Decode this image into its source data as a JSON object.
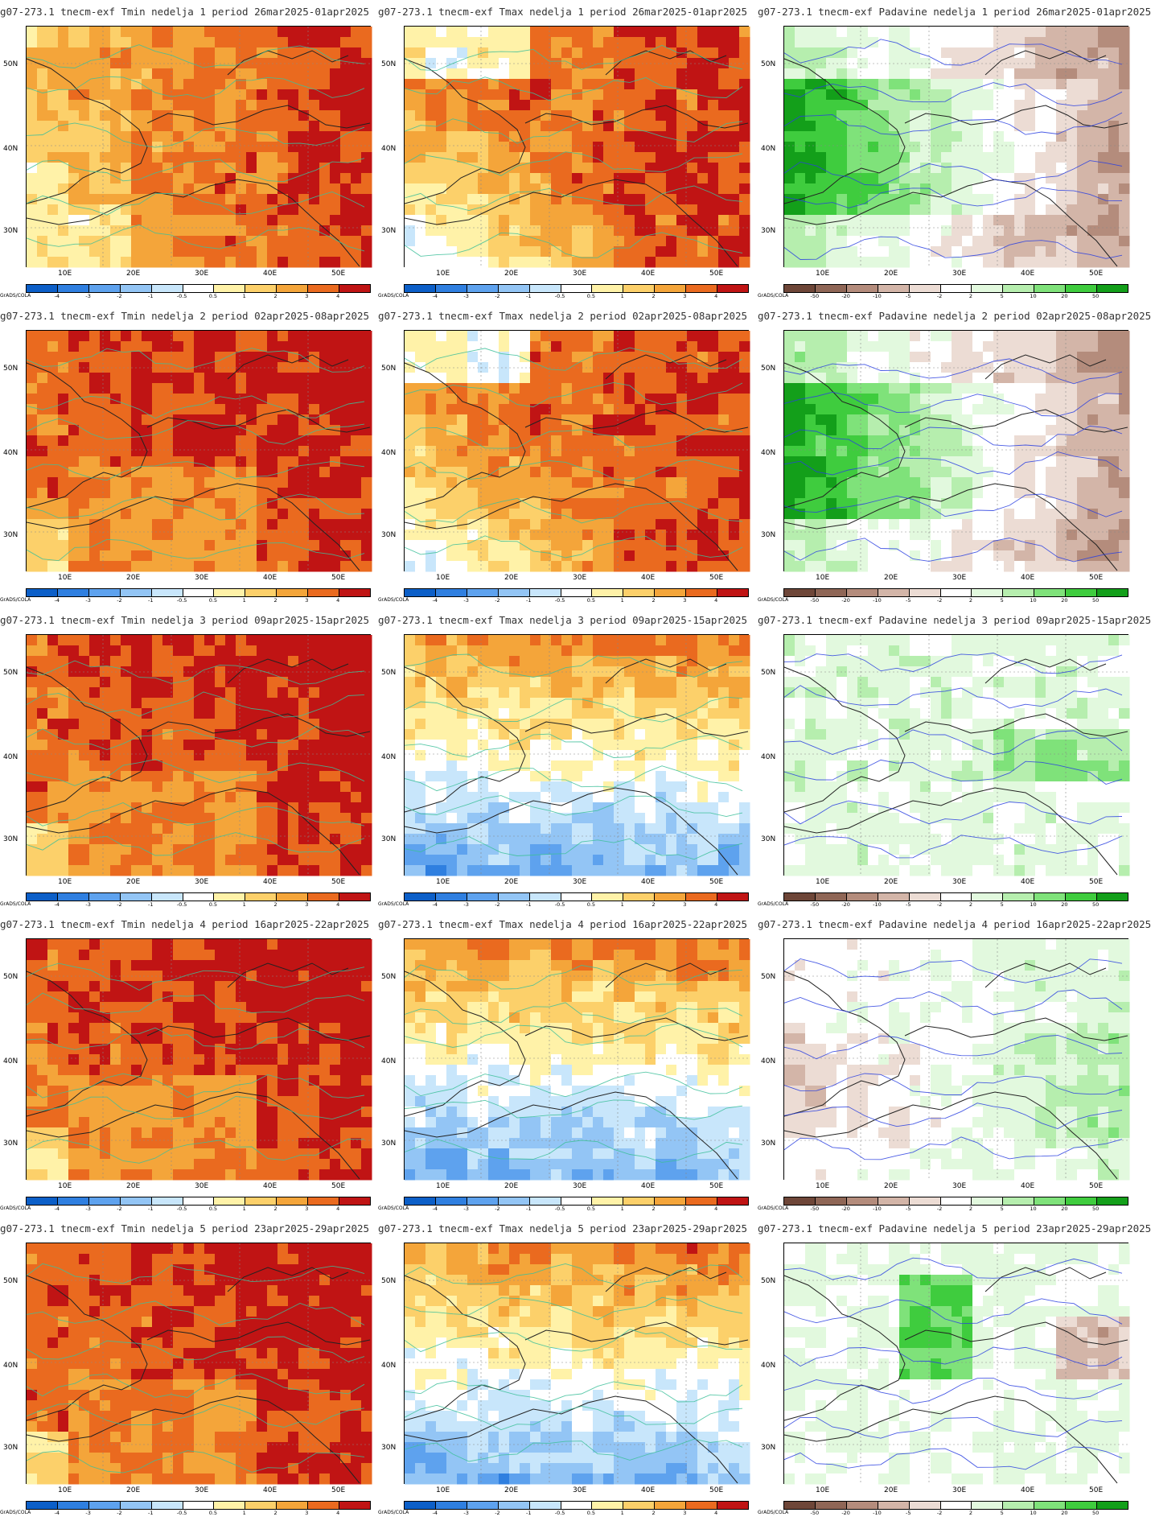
{
  "lat_labels": [
    "50N",
    "40N",
    "30N"
  ],
  "lon_labels": [
    "10E",
    "20E",
    "30E",
    "40E",
    "50E"
  ],
  "credit": "GrADS/COLA",
  "temp_scale": {
    "ticks": [
      "-4",
      "-3",
      "-2",
      "-1",
      "-0.5",
      "0.5",
      "1",
      "2",
      "3",
      "4"
    ],
    "colors": [
      "#0c5fc8",
      "#2f7fe0",
      "#5ea2ee",
      "#93c5f5",
      "#c8e6fb",
      "#ffffff",
      "#fff2a8",
      "#fcd06a",
      "#f4a53a",
      "#ea6a1f",
      "#c01414"
    ]
  },
  "precip_scale": {
    "ticks": [
      "-50",
      "-20",
      "-10",
      "-5",
      "-2",
      "2",
      "5",
      "10",
      "20",
      "50"
    ],
    "colors": [
      "#6e4638",
      "#8f6656",
      "#b48c7c",
      "#d3b5a8",
      "#ecdcd4",
      "#ffffff",
      "#e2f9de",
      "#b6eeae",
      "#7fe27a",
      "#3fcc3e",
      "#139f1a"
    ]
  },
  "panels": [
    {
      "title": "g07-273.1 tnecm-exf Tmin nedelja 1 period 26mar2025-01apr2025",
      "scale": "temp",
      "pattern": "warm"
    },
    {
      "title": "g07-273.1 tnecm-exf Tmax nedelja 1 period 26mar2025-01apr2025",
      "scale": "temp",
      "pattern": "mixed_cold_sw"
    },
    {
      "title": "g07-273.1 tnecm-exf Padavine nedelja 1 period 26mar2025-01apr2025",
      "scale": "precip",
      "pattern": "wet_west_dry_east"
    },
    {
      "title": "g07-273.1 tnecm-exf Tmin nedelja 2 period 02apr2025-08apr2025",
      "scale": "temp",
      "pattern": "very_warm"
    },
    {
      "title": "g07-273.1 tnecm-exf Tmax nedelja 2 period 02apr2025-08apr2025",
      "scale": "temp",
      "pattern": "mixed_cold_sw"
    },
    {
      "title": "g07-273.1 tnecm-exf Padavine nedelja 2 period 02apr2025-08apr2025",
      "scale": "precip",
      "pattern": "wet_west_dry_east"
    },
    {
      "title": "g07-273.1 tnecm-exf Tmin nedelja 3 period 09apr2025-15apr2025",
      "scale": "temp",
      "pattern": "very_warm"
    },
    {
      "title": "g07-273.1 tnecm-exf Tmax nedelja 3 period 09apr2025-15apr2025",
      "scale": "temp",
      "pattern": "warm_north_cold_south"
    },
    {
      "title": "g07-273.1 tnecm-exf Padavine nedelja 3 period 09apr2025-15apr2025",
      "scale": "precip",
      "pattern": "light_wet"
    },
    {
      "title": "g07-273.1 tnecm-exf Tmin nedelja 4 period 16apr2025-22apr2025",
      "scale": "temp",
      "pattern": "very_warm"
    },
    {
      "title": "g07-273.1 tnecm-exf Tmax nedelja 4 period 16apr2025-22apr2025",
      "scale": "temp",
      "pattern": "warm_north_cold_south"
    },
    {
      "title": "g07-273.1 tnecm-exf Padavine nedelja 4 period 16apr2025-22apr2025",
      "scale": "precip",
      "pattern": "wet_east_dry_west"
    },
    {
      "title": "g07-273.1 tnecm-exf Tmin nedelja 5 period 23apr2025-29apr2025",
      "scale": "temp",
      "pattern": "very_warm"
    },
    {
      "title": "g07-273.1 tnecm-exf Tmax nedelja 5 period 23apr2025-29apr2025",
      "scale": "temp",
      "pattern": "warm_north_cold_south"
    },
    {
      "title": "g07-273.1 tnecm-exf Padavine nedelja 5 period 23apr2025-29apr2025",
      "scale": "precip",
      "pattern": "wet_center"
    }
  ]
}
